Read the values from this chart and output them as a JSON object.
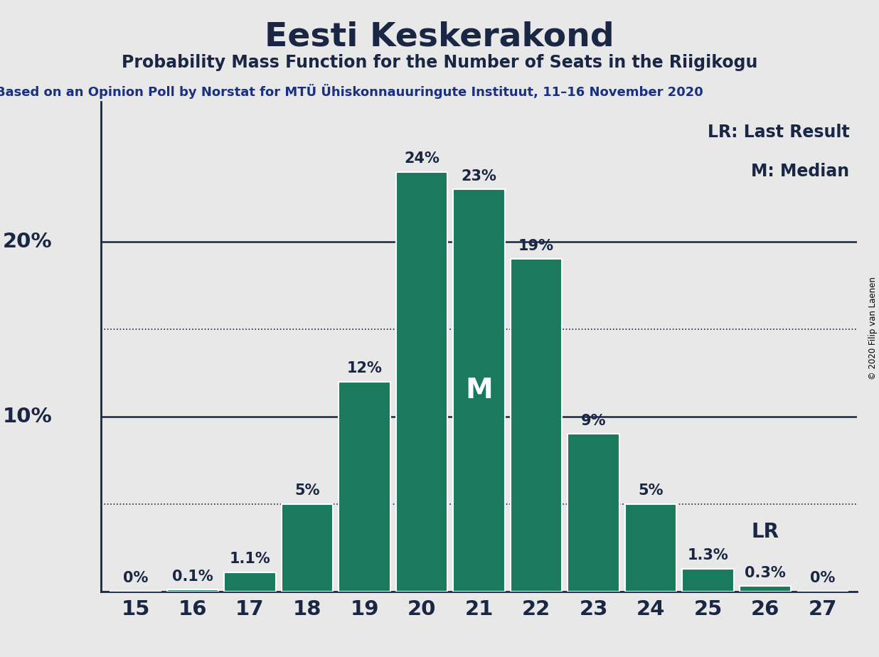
{
  "title": "Eesti Keskerakond",
  "subtitle": "Probability Mass Function for the Number of Seats in the Riigikogu",
  "source_line": "Based on an Opinion Poll by Norstat for MTÜ Ühiskonnauuringute Instituut, 11–16 November 2020",
  "copyright": "© 2020 Filip van Laenen",
  "seats": [
    15,
    16,
    17,
    18,
    19,
    20,
    21,
    22,
    23,
    24,
    25,
    26,
    27
  ],
  "probabilities": [
    0.0,
    0.1,
    1.1,
    5.0,
    12.0,
    24.0,
    23.0,
    19.0,
    9.0,
    5.0,
    1.3,
    0.3,
    0.0
  ],
  "bar_color": "#1a7a5e",
  "bar_edge_color": "#ffffff",
  "background_color": "#e8e8e8",
  "text_color": "#1a2744",
  "source_color": "#1a3080",
  "median_seat": 21,
  "last_result_seat": 26,
  "legend_lr": "LR: Last Result",
  "legend_m": "M: Median",
  "yticks_solid": [
    10,
    20
  ],
  "ytick_dotted": [
    5,
    15
  ],
  "ylim": [
    0,
    28
  ],
  "title_fontsize": 34,
  "subtitle_fontsize": 17,
  "source_fontsize": 13,
  "bar_label_fontsize": 15,
  "axis_label_fontsize": 21,
  "legend_fontsize": 17,
  "median_label_fontsize": 28,
  "lr_label_fontsize": 20
}
